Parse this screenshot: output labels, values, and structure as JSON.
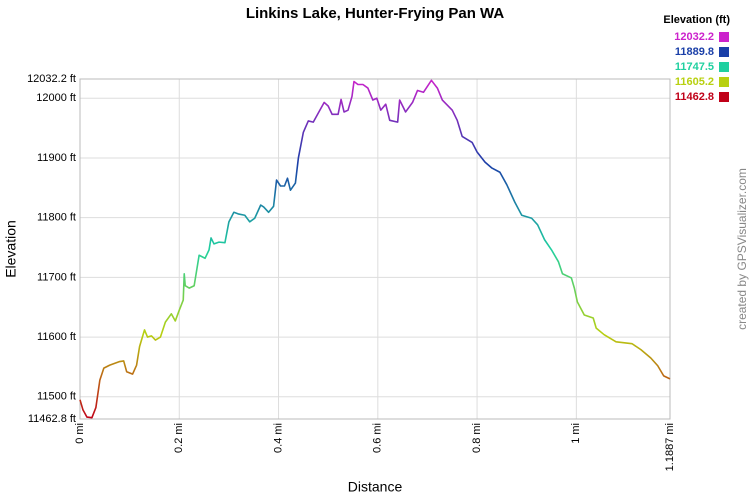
{
  "chart_data": {
    "type": "line",
    "title": "Linkins Lake, Hunter-Frying Pan WA",
    "xlabel": "Distance",
    "ylabel": "Elevation",
    "watermark": "created by GPSVisualizer.com",
    "legend_title": "Elevation (ft)",
    "colorscale": [
      {
        "value": 12032.2,
        "color": "#cc22cc"
      },
      {
        "value": 11889.8,
        "color": "#1a3fa8"
      },
      {
        "value": 11747.5,
        "color": "#1fd0a0"
      },
      {
        "value": 11605.2,
        "color": "#b8d010"
      },
      {
        "value": 11462.8,
        "color": "#c00018"
      }
    ],
    "grid": true,
    "xlim": [
      0,
      1.1887
    ],
    "ylim": [
      11462.8,
      12032.2
    ],
    "xticks": [
      {
        "value": 0,
        "label": "0 mi"
      },
      {
        "value": 0.2,
        "label": "0.2 mi"
      },
      {
        "value": 0.4,
        "label": "0.4 mi"
      },
      {
        "value": 0.6,
        "label": "0.6 mi"
      },
      {
        "value": 0.8,
        "label": "0.8 mi"
      },
      {
        "value": 1,
        "label": "1 mi"
      },
      {
        "value": 1.1887,
        "label": "1.1887 mi"
      }
    ],
    "yticks": [
      {
        "value": 11462.8,
        "label": "11462.8 ft"
      },
      {
        "value": 11500,
        "label": "11500 ft"
      },
      {
        "value": 11600,
        "label": "11600 ft"
      },
      {
        "value": 11700,
        "label": "11700 ft"
      },
      {
        "value": 11800,
        "label": "11800 ft"
      },
      {
        "value": 11900,
        "label": "11900 ft"
      },
      {
        "value": 12000,
        "label": "12000 ft"
      },
      {
        "value": 12032.2,
        "label": "12032.2 ft"
      }
    ],
    "x": [
      0,
      0.006,
      0.014,
      0.024,
      0.032,
      0.04,
      0.048,
      0.06,
      0.08,
      0.088,
      0.094,
      0.106,
      0.114,
      0.12,
      0.13,
      0.136,
      0.144,
      0.152,
      0.162,
      0.172,
      0.184,
      0.192,
      0.2,
      0.208,
      0.21,
      0.212,
      0.22,
      0.23,
      0.24,
      0.252,
      0.26,
      0.264,
      0.27,
      0.28,
      0.292,
      0.3,
      0.31,
      0.32,
      0.332,
      0.342,
      0.352,
      0.364,
      0.37,
      0.38,
      0.39,
      0.396,
      0.404,
      0.412,
      0.418,
      0.424,
      0.434,
      0.44,
      0.45,
      0.46,
      0.47,
      0.48,
      0.492,
      0.5,
      0.508,
      0.52,
      0.526,
      0.532,
      0.54,
      0.548,
      0.552,
      0.56,
      0.57,
      0.58,
      0.59,
      0.598,
      0.606,
      0.616,
      0.624,
      0.64,
      0.644,
      0.656,
      0.67,
      0.68,
      0.692,
      0.708,
      0.72,
      0.73,
      0.75,
      0.76,
      0.77,
      0.79,
      0.8,
      0.816,
      0.83,
      0.846,
      0.86,
      0.876,
      0.89,
      0.91,
      0.922,
      0.936,
      0.95,
      0.964,
      0.972,
      0.99,
      0.996,
      1.002,
      1.016,
      1.034,
      1.04,
      1.056,
      1.08,
      1.112,
      1.13,
      1.15,
      1.164,
      1.176,
      1.1887
    ],
    "values": [
      11495,
      11478,
      11466,
      11465,
      11482,
      11528,
      11548,
      11553,
      11559,
      11560,
      11542,
      11538,
      11553,
      11584,
      11612,
      11600,
      11602,
      11595,
      11600,
      11625,
      11639,
      11627,
      11645,
      11662,
      11706,
      11686,
      11682,
      11686,
      11737,
      11732,
      11746,
      11766,
      11756,
      11759,
      11758,
      11793,
      11809,
      11806,
      11804,
      11793,
      11799,
      11821,
      11818,
      11809,
      11819,
      11863,
      11853,
      11853,
      11866,
      11846,
      11858,
      11900,
      11943,
      11962,
      11960,
      11975,
      11993,
      11987,
      11973,
      11973,
      11998,
      11977,
      11980,
      12003,
      12028,
      12023,
      12023,
      12017,
      11997,
      12000,
      11980,
      11990,
      11963,
      11960,
      11997,
      11977,
      11993,
      12013,
      12010,
      12030,
      12017,
      11997,
      11980,
      11963,
      11936,
      11926,
      11910,
      11893,
      11883,
      11876,
      11855,
      11826,
      11804,
      11799,
      11788,
      11763,
      11746,
      11726,
      11706,
      11699,
      11682,
      11659,
      11637,
      11632,
      11615,
      11604,
      11592,
      11589,
      11579,
      11565,
      11552,
      11535,
      11530
    ]
  }
}
